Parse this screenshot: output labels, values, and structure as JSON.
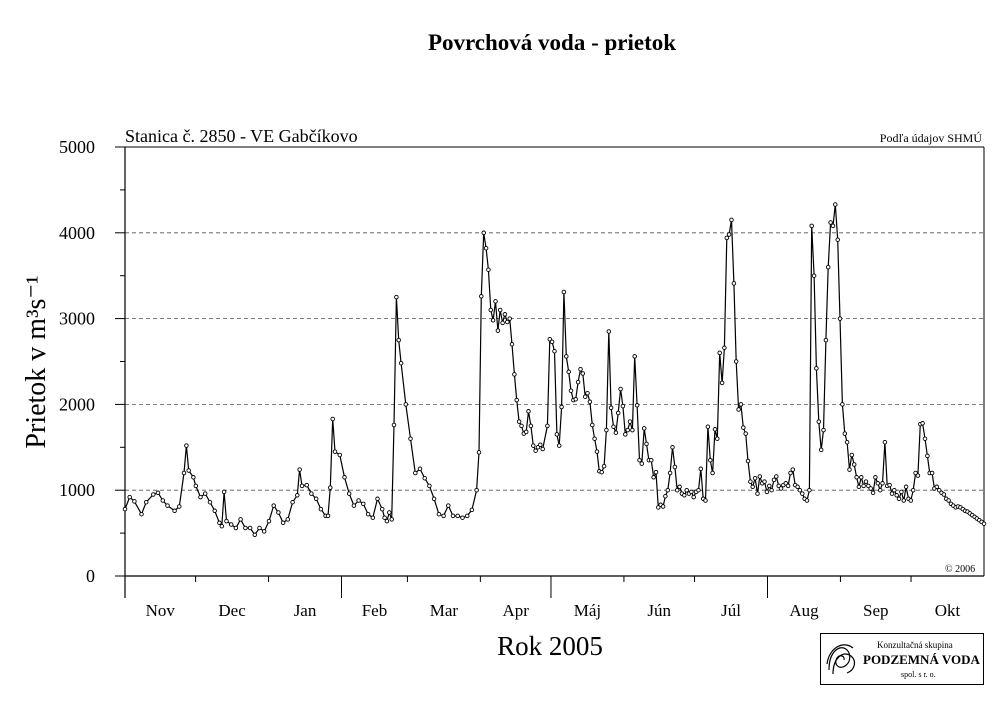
{
  "header": {
    "title": "Povrchová voda - prietok",
    "station": "Stanica č. 2850 - VE Gabčíkovo",
    "source": "Podľa údajov SHMÚ",
    "copyright": "© 2006"
  },
  "logo": {
    "line1": "Konzultačná skupina",
    "line2": "PODZEMNÁ VODA",
    "line3": "spol. s r. o."
  },
  "colors": {
    "line": "#000000",
    "grid": "#555555",
    "background": "#ffffff"
  },
  "chart_data": {
    "type": "line",
    "title": "Povrchová voda - prietok",
    "subtitle": "Stanica č. 2850 - VE Gabčíkovo",
    "xlabel": "Rok 2005",
    "ylabel": "Prietok v m³s⁻¹",
    "ylim": [
      0,
      5000
    ],
    "yticks": [
      0,
      1000,
      2000,
      3000,
      4000,
      5000
    ],
    "grid": "horizontal dashed",
    "markers": "small hollow circles",
    "months": [
      "Nov",
      "Dec",
      "Jan",
      "Feb",
      "Mar",
      "Apr",
      "Máj",
      "Jún",
      "Júl",
      "Aug",
      "Sep",
      "Okt"
    ],
    "month_days": [
      30,
      31,
      31,
      28,
      31,
      30,
      31,
      30,
      31,
      31,
      30,
      31
    ],
    "x_unit": "day of hydrological year 2005 (1 = 1 Nov 2004)",
    "series": [
      {
        "points": [
          [
            1,
            780
          ],
          [
            3,
            920
          ],
          [
            5,
            870
          ],
          [
            8,
            720
          ],
          [
            10,
            860
          ],
          [
            13,
            950
          ],
          [
            15,
            970
          ],
          [
            17,
            880
          ],
          [
            19,
            820
          ],
          [
            22,
            760
          ],
          [
            24,
            810
          ],
          [
            26,
            1200
          ],
          [
            27,
            1520
          ],
          [
            28,
            1230
          ],
          [
            30,
            1150
          ],
          [
            31,
            1050
          ],
          [
            33,
            920
          ],
          [
            35,
            960
          ],
          [
            37,
            860
          ],
          [
            39,
            760
          ],
          [
            41,
            620
          ],
          [
            42,
            580
          ],
          [
            43,
            980
          ],
          [
            44,
            640
          ],
          [
            46,
            600
          ],
          [
            48,
            560
          ],
          [
            50,
            660
          ],
          [
            52,
            560
          ],
          [
            54,
            560
          ],
          [
            56,
            480
          ],
          [
            58,
            560
          ],
          [
            60,
            520
          ],
          [
            62,
            640
          ],
          [
            64,
            820
          ],
          [
            66,
            740
          ],
          [
            68,
            620
          ],
          [
            70,
            660
          ],
          [
            72,
            860
          ],
          [
            74,
            940
          ],
          [
            75,
            1240
          ],
          [
            76,
            1050
          ],
          [
            78,
            1060
          ],
          [
            80,
            960
          ],
          [
            82,
            900
          ],
          [
            84,
            780
          ],
          [
            86,
            700
          ],
          [
            87,
            700
          ],
          [
            88,
            1030
          ],
          [
            89,
            1830
          ],
          [
            90,
            1450
          ],
          [
            92,
            1410
          ],
          [
            94,
            1150
          ],
          [
            96,
            960
          ],
          [
            98,
            820
          ],
          [
            100,
            880
          ],
          [
            102,
            840
          ],
          [
            104,
            720
          ],
          [
            106,
            680
          ],
          [
            108,
            900
          ],
          [
            110,
            780
          ],
          [
            111,
            680
          ],
          [
            112,
            640
          ],
          [
            113,
            740
          ],
          [
            114,
            660
          ],
          [
            115,
            1760
          ],
          [
            116,
            3250
          ],
          [
            117,
            2750
          ],
          [
            118,
            2480
          ],
          [
            120,
            2000
          ],
          [
            122,
            1600
          ],
          [
            124,
            1200
          ],
          [
            126,
            1250
          ],
          [
            128,
            1140
          ],
          [
            130,
            1050
          ],
          [
            132,
            900
          ],
          [
            134,
            720
          ],
          [
            136,
            700
          ],
          [
            138,
            820
          ],
          [
            140,
            700
          ],
          [
            142,
            700
          ],
          [
            144,
            680
          ],
          [
            146,
            700
          ],
          [
            148,
            770
          ],
          [
            150,
            1000
          ],
          [
            151,
            1440
          ],
          [
            152,
            3260
          ],
          [
            153,
            4000
          ],
          [
            154,
            3820
          ],
          [
            155,
            3570
          ],
          [
            156,
            3100
          ],
          [
            157,
            2980
          ],
          [
            158,
            3200
          ],
          [
            159,
            2860
          ],
          [
            160,
            3100
          ],
          [
            161,
            2950
          ],
          [
            162,
            3050
          ],
          [
            163,
            2960
          ],
          [
            164,
            3000
          ],
          [
            165,
            2700
          ],
          [
            166,
            2350
          ],
          [
            167,
            2050
          ],
          [
            168,
            1800
          ],
          [
            169,
            1750
          ],
          [
            170,
            1660
          ],
          [
            171,
            1680
          ],
          [
            172,
            1920
          ],
          [
            173,
            1750
          ],
          [
            174,
            1520
          ],
          [
            175,
            1460
          ],
          [
            176,
            1500
          ],
          [
            177,
            1530
          ],
          [
            178,
            1480
          ],
          [
            180,
            1750
          ],
          [
            181,
            2760
          ],
          [
            182,
            2730
          ],
          [
            183,
            2620
          ],
          [
            184,
            1650
          ],
          [
            185,
            1520
          ],
          [
            186,
            1970
          ],
          [
            187,
            3310
          ],
          [
            188,
            2560
          ],
          [
            189,
            2380
          ],
          [
            190,
            2160
          ],
          [
            191,
            2050
          ],
          [
            192,
            2060
          ],
          [
            193,
            2260
          ],
          [
            194,
            2410
          ],
          [
            195,
            2360
          ],
          [
            196,
            2090
          ],
          [
            197,
            2130
          ],
          [
            198,
            2030
          ],
          [
            199,
            1760
          ],
          [
            200,
            1600
          ],
          [
            201,
            1450
          ],
          [
            202,
            1220
          ],
          [
            203,
            1210
          ],
          [
            204,
            1280
          ],
          [
            205,
            1700
          ],
          [
            206,
            2850
          ],
          [
            207,
            1960
          ],
          [
            208,
            1740
          ],
          [
            209,
            1670
          ],
          [
            210,
            1900
          ],
          [
            211,
            2180
          ],
          [
            212,
            1980
          ],
          [
            213,
            1650
          ],
          [
            214,
            1700
          ],
          [
            215,
            1800
          ],
          [
            216,
            1700
          ],
          [
            217,
            2560
          ],
          [
            218,
            1990
          ],
          [
            219,
            1350
          ],
          [
            220,
            1310
          ],
          [
            221,
            1720
          ],
          [
            222,
            1540
          ],
          [
            223,
            1350
          ],
          [
            224,
            1350
          ],
          [
            225,
            1150
          ],
          [
            226,
            1210
          ],
          [
            227,
            800
          ],
          [
            228,
            830
          ],
          [
            229,
            810
          ],
          [
            230,
            930
          ],
          [
            231,
            1000
          ],
          [
            232,
            1200
          ],
          [
            233,
            1500
          ],
          [
            234,
            1270
          ],
          [
            235,
            1000
          ],
          [
            236,
            1040
          ],
          [
            237,
            960
          ],
          [
            238,
            940
          ],
          [
            239,
            1000
          ],
          [
            240,
            960
          ],
          [
            241,
            980
          ],
          [
            242,
            920
          ],
          [
            243,
            980
          ],
          [
            244,
            1000
          ],
          [
            245,
            1250
          ],
          [
            246,
            900
          ],
          [
            247,
            880
          ],
          [
            248,
            1740
          ],
          [
            249,
            1350
          ],
          [
            250,
            1200
          ],
          [
            251,
            1710
          ],
          [
            252,
            1600
          ],
          [
            253,
            2600
          ],
          [
            254,
            2250
          ],
          [
            255,
            2660
          ],
          [
            256,
            3940
          ],
          [
            257,
            3980
          ],
          [
            258,
            4150
          ],
          [
            259,
            3410
          ],
          [
            260,
            2500
          ],
          [
            261,
            1940
          ],
          [
            262,
            2000
          ],
          [
            263,
            1730
          ],
          [
            264,
            1660
          ],
          [
            265,
            1340
          ],
          [
            266,
            1100
          ],
          [
            267,
            1040
          ],
          [
            268,
            1140
          ],
          [
            269,
            960
          ],
          [
            270,
            1160
          ],
          [
            271,
            1080
          ],
          [
            272,
            1100
          ],
          [
            273,
            980
          ],
          [
            274,
            1050
          ],
          [
            275,
            1000
          ],
          [
            276,
            1120
          ],
          [
            277,
            1160
          ],
          [
            278,
            1050
          ],
          [
            279,
            1020
          ],
          [
            280,
            1060
          ],
          [
            281,
            1080
          ],
          [
            282,
            1050
          ],
          [
            283,
            1200
          ],
          [
            284,
            1240
          ],
          [
            285,
            1060
          ],
          [
            286,
            1040
          ],
          [
            287,
            1000
          ],
          [
            288,
            960
          ],
          [
            289,
            900
          ],
          [
            290,
            880
          ],
          [
            291,
            1000
          ],
          [
            292,
            4080
          ],
          [
            293,
            3500
          ],
          [
            294,
            2420
          ],
          [
            295,
            1800
          ],
          [
            296,
            1470
          ],
          [
            297,
            1700
          ],
          [
            298,
            2750
          ],
          [
            299,
            3600
          ],
          [
            300,
            4120
          ],
          [
            301,
            4080
          ],
          [
            302,
            4330
          ],
          [
            303,
            3920
          ],
          [
            304,
            3000
          ],
          [
            305,
            2000
          ],
          [
            306,
            1660
          ],
          [
            307,
            1560
          ],
          [
            308,
            1240
          ],
          [
            309,
            1410
          ],
          [
            310,
            1300
          ],
          [
            311,
            1150
          ],
          [
            312,
            1040
          ],
          [
            313,
            1150
          ],
          [
            314,
            1050
          ],
          [
            315,
            1100
          ],
          [
            316,
            1050
          ],
          [
            317,
            1020
          ],
          [
            318,
            970
          ],
          [
            319,
            1150
          ],
          [
            320,
            1080
          ],
          [
            321,
            1000
          ],
          [
            322,
            1080
          ],
          [
            323,
            1560
          ],
          [
            324,
            1050
          ],
          [
            325,
            1060
          ],
          [
            326,
            960
          ],
          [
            327,
            1000
          ],
          [
            328,
            940
          ],
          [
            329,
            900
          ],
          [
            330,
            980
          ],
          [
            331,
            880
          ],
          [
            332,
            1040
          ],
          [
            333,
            900
          ],
          [
            334,
            880
          ],
          [
            335,
            1000
          ],
          [
            336,
            1200
          ],
          [
            337,
            1170
          ],
          [
            338,
            1770
          ],
          [
            339,
            1780
          ],
          [
            340,
            1600
          ],
          [
            341,
            1400
          ],
          [
            342,
            1200
          ],
          [
            343,
            1200
          ],
          [
            344,
            1020
          ],
          [
            345,
            1040
          ],
          [
            346,
            1000
          ],
          [
            347,
            970
          ],
          [
            348,
            950
          ],
          [
            349,
            900
          ],
          [
            350,
            880
          ],
          [
            351,
            840
          ],
          [
            352,
            820
          ],
          [
            353,
            800
          ],
          [
            354,
            810
          ],
          [
            355,
            800
          ],
          [
            356,
            780
          ],
          [
            357,
            760
          ],
          [
            358,
            750
          ],
          [
            359,
            730
          ],
          [
            360,
            710
          ],
          [
            361,
            690
          ],
          [
            362,
            670
          ],
          [
            363,
            650
          ],
          [
            364,
            630
          ],
          [
            365,
            610
          ]
        ]
      }
    ]
  }
}
